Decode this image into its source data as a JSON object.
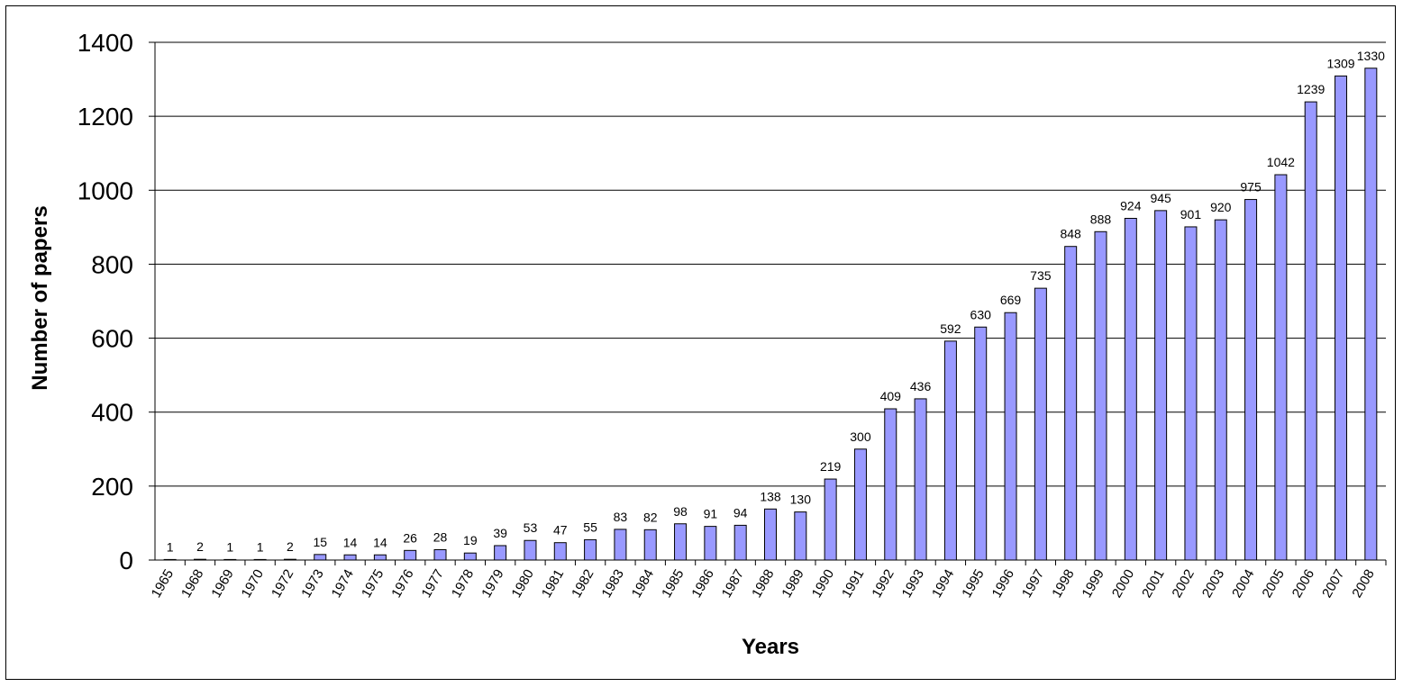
{
  "chart_data": {
    "type": "bar",
    "title": "",
    "xlabel": "Years",
    "ylabel": "Number of papers",
    "ylim": [
      0,
      1400
    ],
    "y_ticks": [
      "0",
      "200",
      "400",
      "600",
      "800",
      "1000",
      "1200",
      "1400"
    ],
    "grid": true,
    "legend": "none",
    "bar_color": "#9999ff",
    "categories": [
      "1965",
      "1968",
      "1969",
      "1970",
      "1972",
      "1973",
      "1974",
      "1975",
      "1976",
      "1977",
      "1978",
      "1979",
      "1980",
      "1981",
      "1982",
      "1983",
      "1984",
      "1985",
      "1986",
      "1987",
      "1988",
      "1989",
      "1990",
      "1991",
      "1992",
      "1993",
      "1994",
      "1995",
      "1996",
      "1997",
      "1998",
      "1999",
      "2000",
      "2001",
      "2002",
      "2003",
      "2004",
      "2005",
      "2006",
      "2007",
      "2008"
    ],
    "values": [
      1,
      2,
      1,
      1,
      2,
      15,
      14,
      14,
      26,
      28,
      19,
      39,
      53,
      47,
      55,
      83,
      82,
      98,
      91,
      94,
      138,
      130,
      219,
      300,
      409,
      436,
      592,
      630,
      669,
      735,
      848,
      888,
      924,
      945,
      901,
      920,
      975,
      1042,
      1239,
      1309,
      1330
    ],
    "data_labels": [
      "1",
      "2",
      "1",
      "1",
      "2",
      "15",
      "14",
      "14",
      "26",
      "28",
      "19",
      "39",
      "53",
      "47",
      "55",
      "83",
      "82",
      "98",
      "91",
      "94",
      "138",
      "130",
      "219",
      "300",
      "409",
      "436",
      "592",
      "630",
      "669",
      "735",
      "848",
      "888",
      "924",
      "945",
      "901",
      "920",
      "975",
      "1042",
      "1239",
      "1309",
      "1330"
    ]
  }
}
